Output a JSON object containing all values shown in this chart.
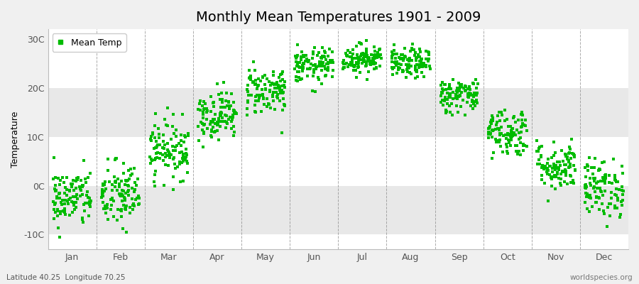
{
  "title": "Monthly Mean Temperatures 1901 - 2009",
  "ylabel": "Temperature",
  "yticks": [
    -10,
    0,
    10,
    20,
    30
  ],
  "ytick_labels": [
    "-10C",
    "0C",
    "10C",
    "20C",
    "30C"
  ],
  "ylim": [
    -13,
    32
  ],
  "months": [
    "Jan",
    "Feb",
    "Mar",
    "Apr",
    "May",
    "Jun",
    "Jul",
    "Aug",
    "Sep",
    "Oct",
    "Nov",
    "Dec"
  ],
  "monthly_means": [
    -2.5,
    -2.0,
    7.5,
    14.5,
    19.5,
    24.5,
    26.0,
    25.0,
    18.5,
    11.0,
    4.0,
    -0.5
  ],
  "monthly_stds": [
    3.0,
    3.5,
    3.0,
    2.5,
    2.5,
    1.8,
    1.5,
    1.5,
    1.8,
    2.5,
    2.5,
    3.0
  ],
  "n_years": 109,
  "marker_color": "#00BB00",
  "marker_size": 2.5,
  "bg_color": "#f0f0f0",
  "plot_bg_color": "#ffffff",
  "band_color": "#e8e8e8",
  "legend_label": "Mean Temp",
  "bottom_left": "Latitude 40.25  Longitude 70.25",
  "bottom_right": "worldspecies.org",
  "grid_color": "#888888",
  "title_fontsize": 14,
  "label_fontsize": 9,
  "tick_fontsize": 9
}
